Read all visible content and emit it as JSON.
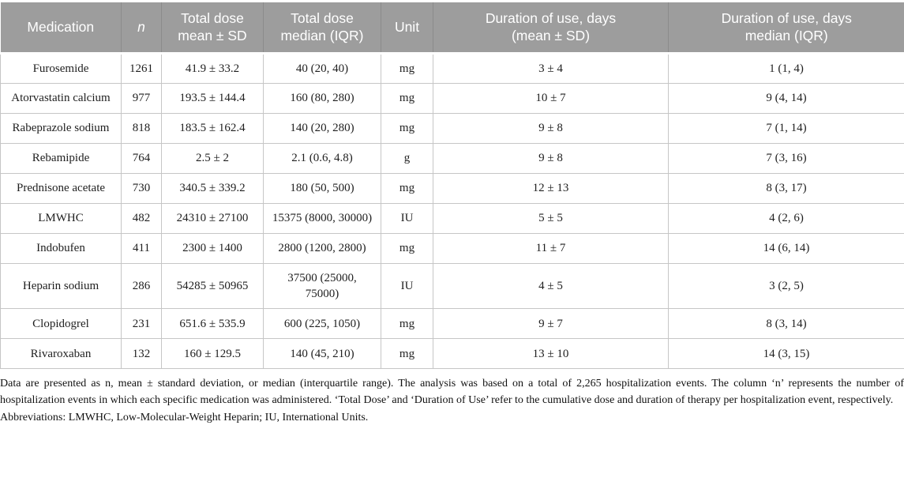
{
  "table": {
    "columns": [
      {
        "key": "medication",
        "label": "Medication",
        "italic": false
      },
      {
        "key": "n",
        "label": "n",
        "italic": true
      },
      {
        "key": "total-dose-mean",
        "label": "Total dose\nmean ± SD",
        "italic": false
      },
      {
        "key": "total-dose-median",
        "label": "Total dose\nmedian (IQR)",
        "italic": false
      },
      {
        "key": "unit",
        "label": "Unit",
        "italic": false
      },
      {
        "key": "duration-mean",
        "label": "Duration of use, days\n(mean ± SD)",
        "italic": false
      },
      {
        "key": "duration-median",
        "label": "Duration of use, days\nmedian (IQR)",
        "italic": false
      }
    ],
    "rows": [
      [
        "Furosemide",
        "1261",
        "41.9 ± 33.2",
        "40 (20, 40)",
        "mg",
        "3 ± 4",
        "1 (1, 4)"
      ],
      [
        "Atorvastatin calcium",
        "977",
        "193.5 ± 144.4",
        "160 (80, 280)",
        "mg",
        "10 ± 7",
        "9 (4, 14)"
      ],
      [
        "Rabeprazole sodium",
        "818",
        "183.5 ± 162.4",
        "140 (20, 280)",
        "mg",
        "9 ± 8",
        "7 (1, 14)"
      ],
      [
        "Rebamipide",
        "764",
        "2.5 ± 2",
        "2.1 (0.6, 4.8)",
        "g",
        "9 ± 8",
        "7 (3, 16)"
      ],
      [
        "Prednisone acetate",
        "730",
        "340.5 ± 339.2",
        "180 (50, 500)",
        "mg",
        "12 ± 13",
        "8 (3, 17)"
      ],
      [
        "LMWHC",
        "482",
        "24310 ± 27100",
        "15375 (8000, 30000)",
        "IU",
        "5 ± 5",
        "4 (2, 6)"
      ],
      [
        "Indobufen",
        "411",
        "2300 ± 1400",
        "2800 (1200, 2800)",
        "mg",
        "11 ± 7",
        "14 (6, 14)"
      ],
      [
        "Heparin sodium",
        "286",
        "54285 ± 50965",
        "37500 (25000, 75000)",
        "IU",
        "4 ± 5",
        "3 (2, 5)"
      ],
      [
        "Clopidogrel",
        "231",
        "651.6 ± 535.9",
        "600 (225, 1050)",
        "mg",
        "9 ± 7",
        "8 (3, 14)"
      ],
      [
        "Rivaroxaban",
        "132",
        "160 ± 129.5",
        "140 (45, 210)",
        "mg",
        "13 ± 10",
        "14 (3, 15)"
      ]
    ]
  },
  "footnotes": {
    "note": "Data are presented as n, mean ± standard deviation, or median (interquartile range). The analysis was based on a total of 2,265 hospitalization events. The column ‘n’ represents the number of hospitalization events in which each specific medication was administered. ‘Total Dose’ and ‘Duration of Use’ refer to the cumulative dose and duration of therapy per hospitalization event, respectively.",
    "abbreviations": "Abbreviations: LMWHC, Low-Molecular-Weight Heparin; IU, International Units."
  },
  "colors": {
    "header_bg": "#9d9d9d",
    "header_separator": "#8b8b8b",
    "header_text": "#ffffff",
    "body_border": "#c6c6c6",
    "body_text": "#1f1f1f"
  }
}
